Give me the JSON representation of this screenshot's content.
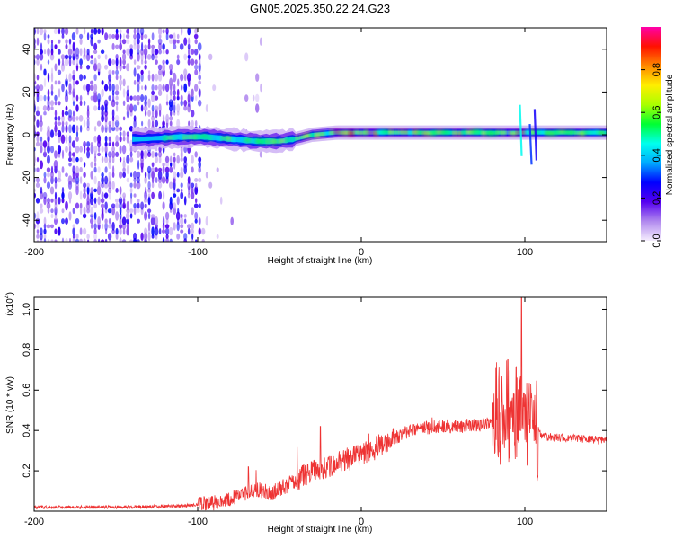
{
  "title": "GN05.2025.350.22.24.G23",
  "chart_data": [
    {
      "type": "heatmap",
      "name": "spectrogram",
      "xlabel": "Height of straight line (km)",
      "ylabel": "Frequency (Hz)",
      "xlim": [
        -200,
        150
      ],
      "ylim": [
        -50,
        50
      ],
      "xticks": [
        -200,
        -100,
        0,
        100
      ],
      "yticks": [
        -40,
        -20,
        0,
        20,
        40
      ],
      "ridge": [
        {
          "x": -135,
          "y": -2
        },
        {
          "x": -110,
          "y": -1
        },
        {
          "x": -95,
          "y": -1
        },
        {
          "x": -80,
          "y": -2
        },
        {
          "x": -65,
          "y": -3
        },
        {
          "x": -50,
          "y": -3
        },
        {
          "x": -40,
          "y": -2
        },
        {
          "x": -30,
          "y": 0
        },
        {
          "x": -15,
          "y": 1
        },
        {
          "x": 0,
          "y": 1
        },
        {
          "x": 20,
          "y": 1
        },
        {
          "x": 40,
          "y": 1
        },
        {
          "x": 60,
          "y": 1
        },
        {
          "x": 80,
          "y": 1
        },
        {
          "x": 95,
          "y": 1
        },
        {
          "x": 110,
          "y": 1
        },
        {
          "x": 130,
          "y": 1
        },
        {
          "x": 150,
          "y": 1
        }
      ],
      "colorbar": {
        "label": "Normalized spectral amplitude",
        "range": [
          0,
          1
        ],
        "ticks": [
          "0.0",
          "0.2",
          "0.4",
          "0.6",
          "0.8"
        ],
        "colors": [
          "#f6eefe",
          "#b088ee",
          "#5500f0",
          "#0000ff",
          "#00aaff",
          "#00ffee",
          "#00ff33",
          "#aaff00",
          "#ffee00",
          "#ff8800",
          "#ff1100",
          "#ff00aa"
        ]
      }
    },
    {
      "type": "line",
      "name": "snr",
      "xlabel": "Height of straight line (km)",
      "ylabel": "SNR (10 * v/v)",
      "scale_label": "(x10",
      "scale_exp": "4",
      "xlim": [
        -200,
        150
      ],
      "ylim": [
        0,
        1.06
      ],
      "xticks": [
        -200,
        -100,
        0,
        100
      ],
      "yticks": [
        0.2,
        0.4,
        0.6,
        0.8,
        1.0
      ],
      "ytick_labels": [
        "0.2",
        "0.4",
        "0.6",
        "0.8",
        "1.0"
      ],
      "color": "#ee3333",
      "envelope": [
        {
          "x": -200,
          "y": 0.02
        },
        {
          "x": -150,
          "y": 0.02
        },
        {
          "x": -110,
          "y": 0.025
        },
        {
          "x": -90,
          "y": 0.04
        },
        {
          "x": -75,
          "y": 0.08
        },
        {
          "x": -65,
          "y": 0.11
        },
        {
          "x": -55,
          "y": 0.09
        },
        {
          "x": -45,
          "y": 0.13
        },
        {
          "x": -30,
          "y": 0.2
        },
        {
          "x": -15,
          "y": 0.24
        },
        {
          "x": 0,
          "y": 0.28
        },
        {
          "x": 15,
          "y": 0.34
        },
        {
          "x": 30,
          "y": 0.4
        },
        {
          "x": 45,
          "y": 0.42
        },
        {
          "x": 60,
          "y": 0.42
        },
        {
          "x": 75,
          "y": 0.43
        },
        {
          "x": 85,
          "y": 0.44
        },
        {
          "x": 92,
          "y": 0.46
        },
        {
          "x": 100,
          "y": 0.47
        },
        {
          "x": 105,
          "y": 0.45
        },
        {
          "x": 110,
          "y": 0.37
        },
        {
          "x": 130,
          "y": 0.36
        },
        {
          "x": 150,
          "y": 0.35
        }
      ]
    }
  ]
}
